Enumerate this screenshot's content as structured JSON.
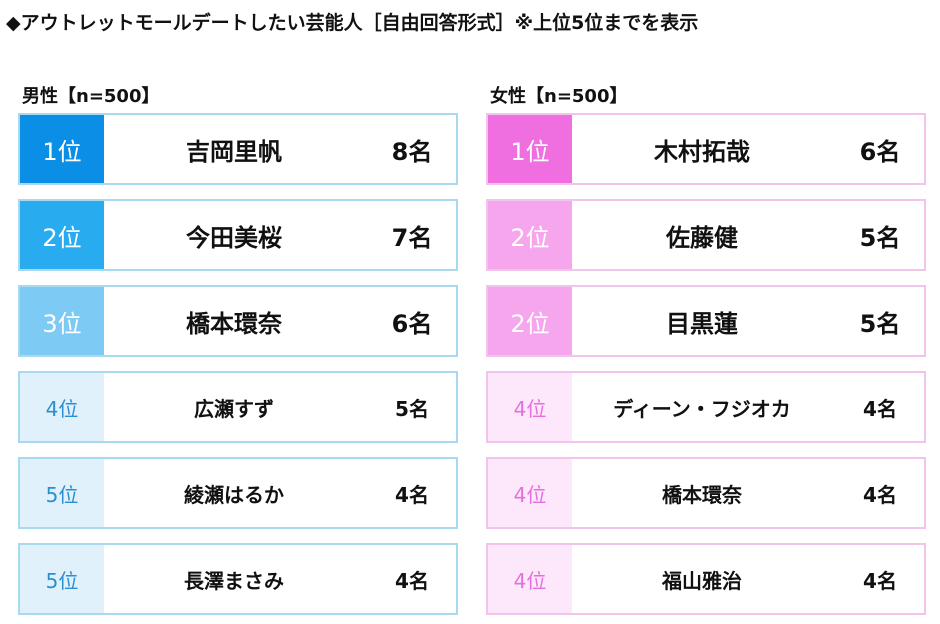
{
  "header": {
    "title": "◆アウトレットモールデートしたい芸能人［自由回答形式］※上位5位までを表示"
  },
  "sections": [
    {
      "label": "男性【n=500】",
      "rows": [
        {
          "rank": "1位",
          "name": "吉岡里帆",
          "count": "8名"
        },
        {
          "rank": "2位",
          "name": "今田美桜",
          "count": "7名"
        },
        {
          "rank": "3位",
          "name": "橋本環奈",
          "count": "6名"
        },
        {
          "rank": "4位",
          "name": "広瀬すず",
          "count": "5名"
        },
        {
          "rank": "5位",
          "name": "綾瀬はるか",
          "count": "4名"
        },
        {
          "rank": "5位",
          "name": "長澤まさみ",
          "count": "4名"
        }
      ]
    },
    {
      "label": "女性【n=500】",
      "rows": [
        {
          "rank": "1位",
          "name": "木村拓哉",
          "count": "6名"
        },
        {
          "rank": "2位",
          "name": "佐藤健",
          "count": "5名"
        },
        {
          "rank": "2位",
          "name": "目黒蓮",
          "count": "5名"
        },
        {
          "rank": "4位",
          "name": "ディーン・フジオカ",
          "count": "4名"
        },
        {
          "rank": "4位",
          "name": "橋本環奈",
          "count": "4名"
        },
        {
          "rank": "4位",
          "name": "福山雅治",
          "count": "4名"
        }
      ]
    }
  ]
}
